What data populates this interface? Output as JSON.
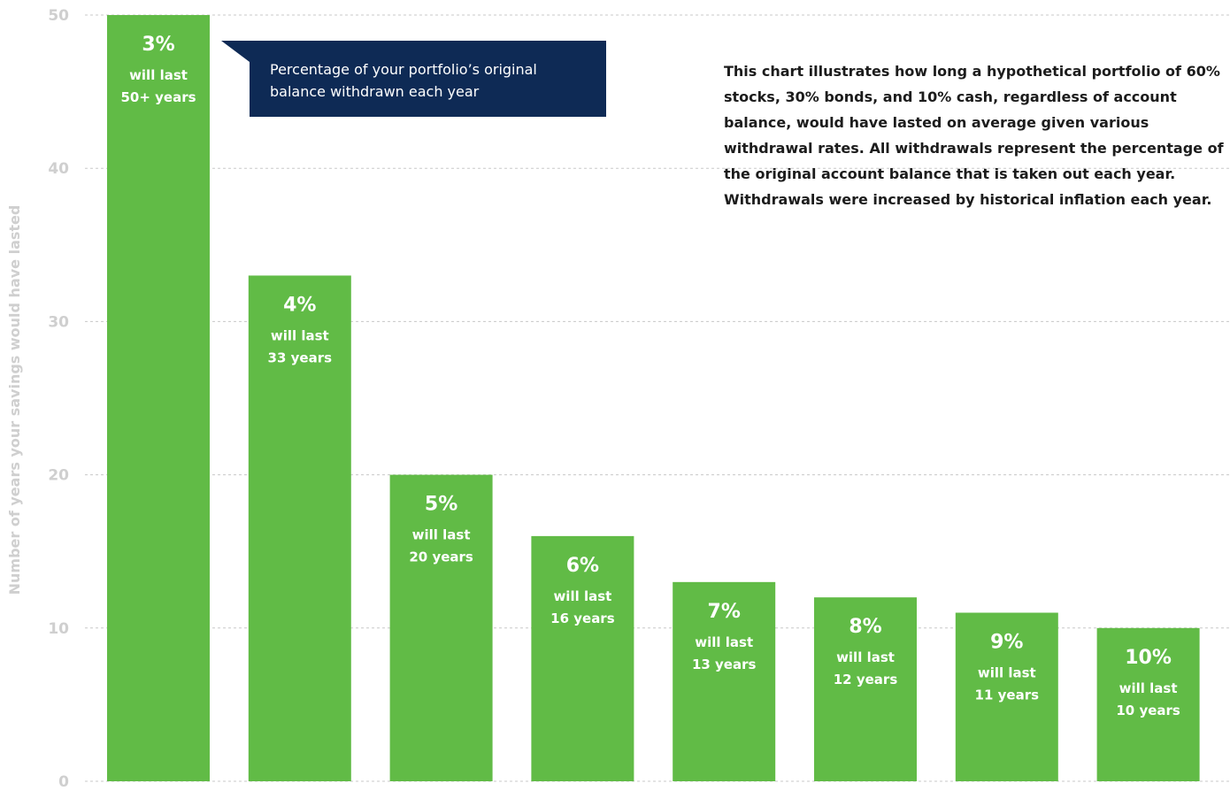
{
  "chart_data": {
    "type": "bar",
    "ylabel": "Number of years your savings would have lasted",
    "xlabel": "",
    "ylim": [
      0,
      50
    ],
    "yticks": [
      0,
      10,
      20,
      30,
      40,
      50
    ],
    "grid": true,
    "categories": [
      "3%",
      "4%",
      "5%",
      "6%",
      "7%",
      "8%",
      "9%",
      "10%"
    ],
    "values": [
      50,
      33,
      20,
      16,
      13,
      12,
      11,
      10
    ],
    "bar_labels": [
      {
        "pct": "3%",
        "line1": "will last",
        "line2": "50+ years"
      },
      {
        "pct": "4%",
        "line1": "will last",
        "line2": "33 years"
      },
      {
        "pct": "5%",
        "line1": "will last",
        "line2": "20 years"
      },
      {
        "pct": "6%",
        "line1": "will last",
        "line2": "16 years"
      },
      {
        "pct": "7%",
        "line1": "will last",
        "line2": "13 years"
      },
      {
        "pct": "8%",
        "line1": "will last",
        "line2": "12 years"
      },
      {
        "pct": "9%",
        "line1": "will last",
        "line2": "11 years"
      },
      {
        "pct": "10%",
        "line1": "will last",
        "line2": "10 years"
      }
    ],
    "callout": {
      "line1": "Percentage of your portfolio’s original",
      "line2": "balance withdrawn each year"
    },
    "note": "This chart illustrates how long a hypothetical portfolio of 60% stocks, 30% bonds, and 10% cash, regardless of account balance, would have lasted on average given various withdrawal rates. All withdrawals represent the percentage of the original account balance that is taken out each year. Withdrawals were increased by historical inflation each year.",
    "colors": {
      "bar": "#61bb46",
      "callout_bg": "#0e2a55",
      "grid": "#c8c8c8",
      "axis_text": "#cfcfcf",
      "note_text": "#1c1c1c"
    }
  }
}
